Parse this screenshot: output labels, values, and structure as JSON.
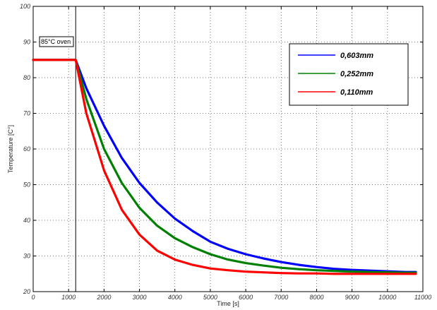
{
  "chart_data": {
    "type": "line",
    "title": "",
    "xlabel": "Time [s]",
    "ylabel": "Temperature [C°]",
    "xlim": [
      0,
      11000
    ],
    "ylim": [
      20,
      100
    ],
    "xticks": [
      0,
      1000,
      2000,
      3000,
      4000,
      5000,
      6000,
      7000,
      8000,
      9000,
      10000,
      11000
    ],
    "yticks": [
      20,
      30,
      40,
      50,
      60,
      70,
      80,
      90,
      100
    ],
    "grid": true,
    "legend_position": "top-right",
    "annotation": {
      "text": "85°C oven",
      "x": 1200
    },
    "colors": {
      "0,603mm": "#0000ff",
      "0,252mm": "#008000",
      "0,110mm": "#ff0000"
    },
    "series": [
      {
        "name": "0,603mm",
        "color": "#0000ff",
        "x": [
          0,
          1200,
          1500,
          2000,
          2500,
          3000,
          3500,
          4000,
          4500,
          5000,
          5500,
          6000,
          6500,
          7000,
          7500,
          8000,
          8500,
          9000,
          9500,
          10000,
          10500,
          10800
        ],
        "y": [
          85,
          85,
          77,
          66.5,
          57.5,
          50.5,
          45,
          40.5,
          37,
          34,
          32,
          30.5,
          29.3,
          28.3,
          27.5,
          26.9,
          26.4,
          26.1,
          25.9,
          25.7,
          25.5,
          25.5
        ]
      },
      {
        "name": "0,252mm",
        "color": "#008000",
        "x": [
          0,
          1200,
          1500,
          2000,
          2500,
          3000,
          3500,
          4000,
          4500,
          5000,
          5500,
          6000,
          6500,
          7000,
          7500,
          8000,
          8500,
          9000,
          9500,
          10000,
          10500,
          10800
        ],
        "y": [
          85,
          85,
          74,
          60,
          50.5,
          43.5,
          38.5,
          35,
          32.5,
          30.5,
          29,
          28,
          27.3,
          26.7,
          26.3,
          26,
          25.8,
          25.6,
          25.5,
          25.4,
          25.3,
          25.3
        ]
      },
      {
        "name": "0,110mm",
        "color": "#ff0000",
        "x": [
          0,
          1200,
          1500,
          2000,
          2500,
          3000,
          3500,
          4000,
          4500,
          5000,
          5500,
          6000,
          6500,
          7000,
          7500,
          8000,
          8500,
          9000,
          9500,
          10000,
          10500,
          10800
        ],
        "y": [
          85,
          85,
          70,
          54,
          43,
          36,
          31.5,
          29,
          27.5,
          26.5,
          26,
          25.6,
          25.4,
          25.2,
          25.1,
          25.1,
          25,
          25,
          25,
          25,
          25,
          25
        ]
      }
    ]
  }
}
